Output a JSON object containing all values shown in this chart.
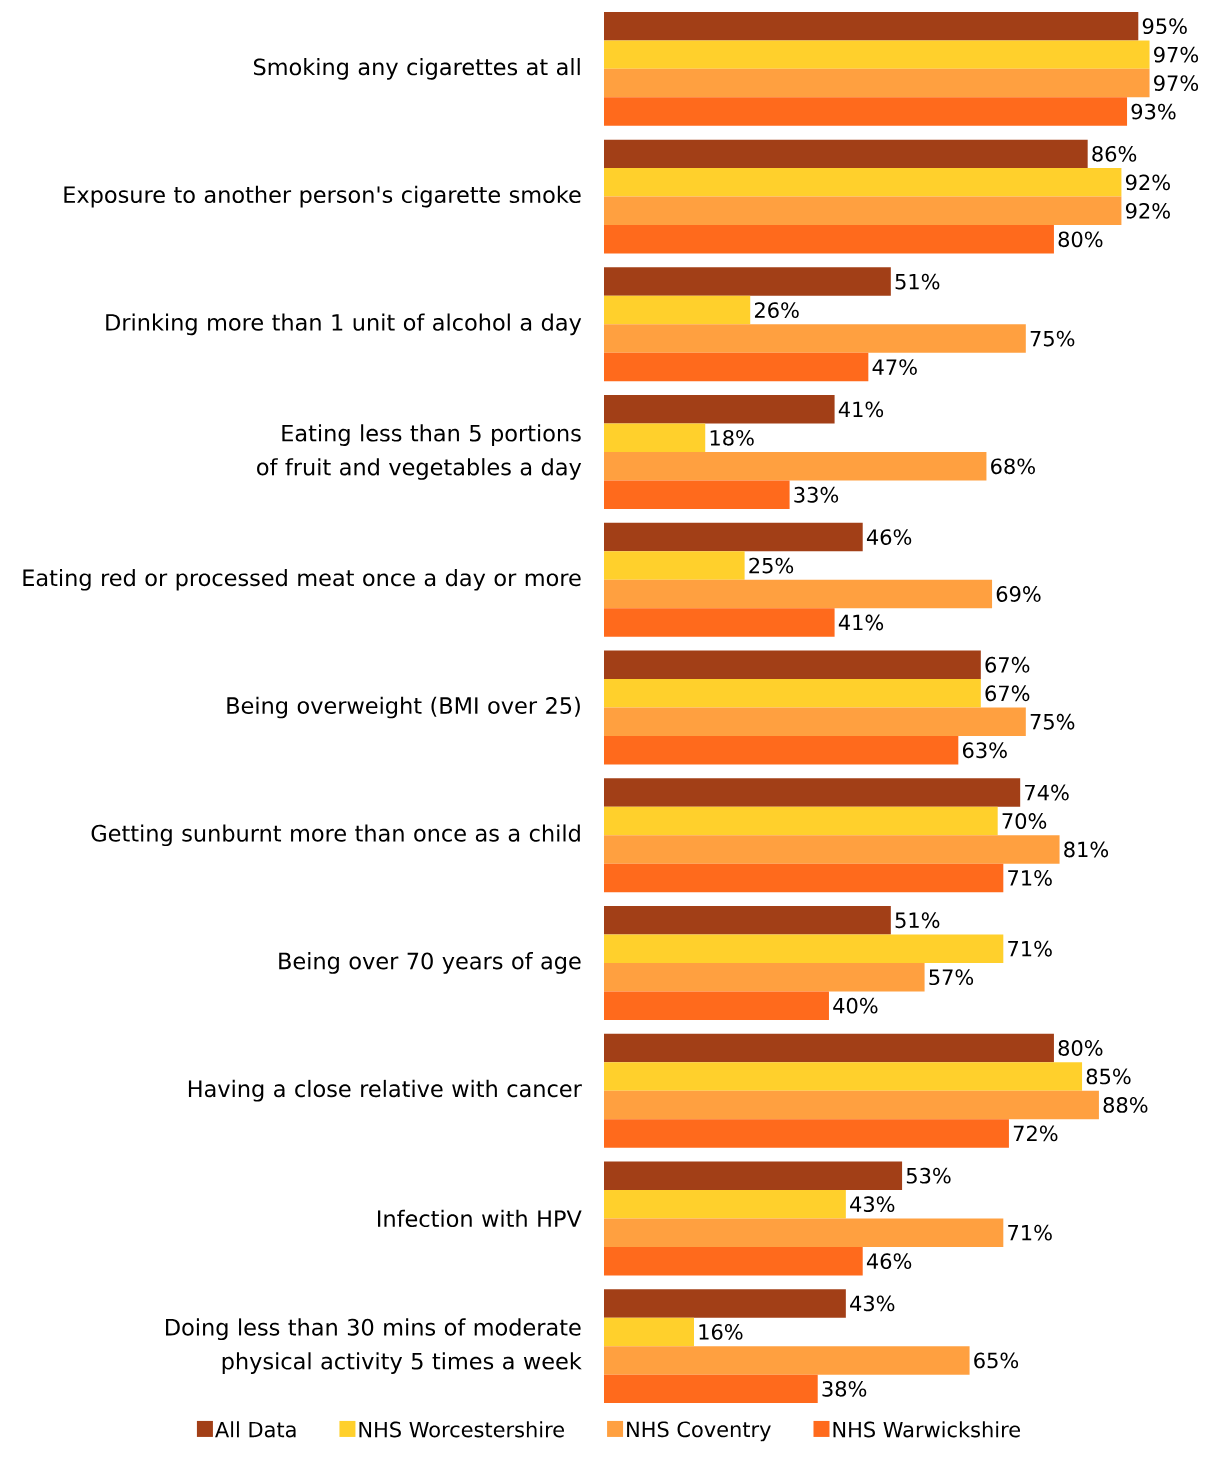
{
  "chart_data": {
    "type": "bar",
    "orientation": "horizontal",
    "legend": "bottom",
    "categories": [
      "Smoking any cigarettes at all",
      "Exposure to another person's cigarette smoke",
      "Drinking more than 1 unit of alcohol a day",
      "Eating less than 5 portions of fruit and vegetables a day",
      "Eating red or processed meat once a day or more",
      "Being overweight (BMI over 25)",
      "Getting sunburnt more than once as a child",
      "Being over 70 years of age",
      "Having a close relative with cancer",
      "Infection with HPV",
      "Doing less than 30 mins of moderate physical activity 5 times a week"
    ],
    "series": [
      {
        "name": "All Data",
        "color": "#a23f17",
        "values": [
          95,
          86,
          51,
          41,
          46,
          67,
          74,
          51,
          80,
          53,
          43
        ],
        "value_labels": [
          "95%",
          "86%",
          "51%",
          "41%",
          "46%",
          "67%",
          "74%",
          "51%",
          "80%",
          "53%",
          "43%"
        ]
      },
      {
        "name": "NHS Worcestershire",
        "color": "#ffd02c",
        "values": [
          97,
          92,
          26,
          18,
          25,
          67,
          70,
          71,
          85,
          43,
          16
        ],
        "value_labels": [
          "97%",
          "92%",
          "26%",
          "18%",
          "25%",
          "67%",
          "70%",
          "71%",
          "85%",
          "43%",
          "16%"
        ]
      },
      {
        "name": "NHS Coventry",
        "color": "#ffa040",
        "values": [
          97,
          92,
          75,
          68,
          69,
          75,
          81,
          57,
          88,
          71,
          65
        ],
        "value_labels": [
          "97%",
          "92%",
          "75%",
          "68%",
          "69%",
          "75%",
          "81%",
          "57%",
          "88%",
          "71%",
          "65%"
        ]
      },
      {
        "name": "NHS Warwickshire",
        "color": "#ff6a1c",
        "values": [
          93,
          80,
          47,
          33,
          41,
          63,
          71,
          40,
          72,
          46,
          38
        ],
        "value_labels": [
          "93%",
          "80%",
          "47%",
          "33%",
          "41%",
          "63%",
          "71%",
          "40%",
          "72%",
          "46%",
          "38%"
        ]
      }
    ]
  }
}
